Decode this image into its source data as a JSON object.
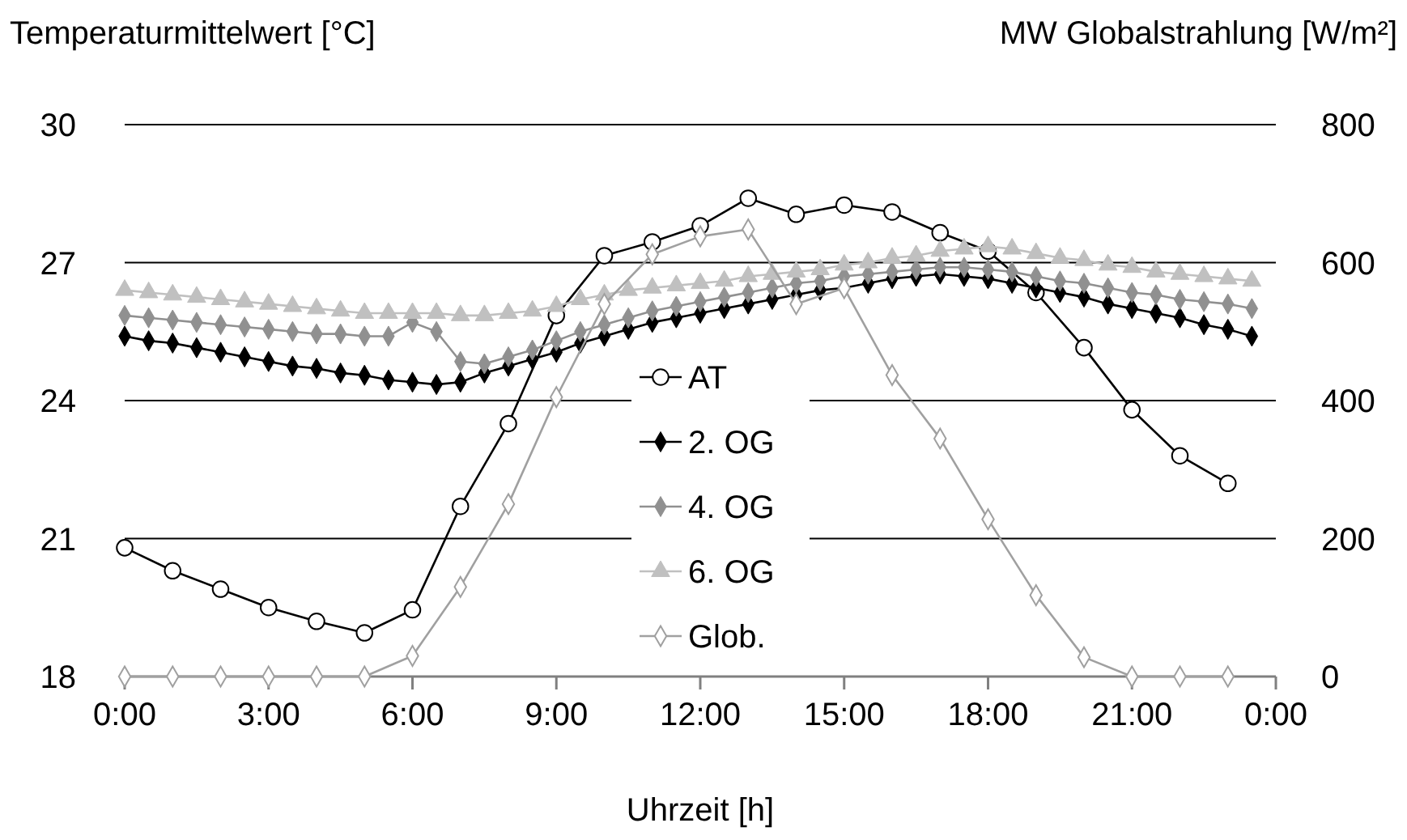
{
  "chart_data": {
    "type": "line",
    "ylabel": "Temperaturmittelwert [°C]",
    "y2label": "MW Globalstrahlung [W/m²]",
    "xlabel": "Uhrzeit [h]",
    "xlim": [
      0,
      24
    ],
    "xticks": [
      {
        "value": 0,
        "label": "0:00"
      },
      {
        "value": 3,
        "label": "3:00"
      },
      {
        "value": 6,
        "label": "6:00"
      },
      {
        "value": 9,
        "label": "9:00"
      },
      {
        "value": 12,
        "label": "12:00"
      },
      {
        "value": 15,
        "label": "15:00"
      },
      {
        "value": 18,
        "label": "18:00"
      },
      {
        "value": 21,
        "label": "21:00"
      },
      {
        "value": 24,
        "label": "0:00"
      }
    ],
    "ylim": [
      18,
      30
    ],
    "yticks": [
      18,
      21,
      24,
      27,
      30
    ],
    "y2lim": [
      0,
      800
    ],
    "y2ticks": [
      0,
      200,
      400,
      600,
      800
    ],
    "grid": "y",
    "legend": "center",
    "series": [
      {
        "name": "AT",
        "color": "#000000",
        "marker": "circle",
        "x": [
          0,
          1,
          2,
          3,
          4,
          5,
          6,
          7,
          8,
          9,
          10,
          11,
          12,
          13,
          14,
          15,
          16,
          17,
          18,
          19,
          20,
          21,
          22,
          23
        ],
        "values": [
          20.8,
          20.3,
          19.9,
          19.5,
          19.2,
          18.95,
          19.45,
          21.7,
          23.5,
          25.85,
          27.15,
          27.45,
          27.8,
          28.4,
          28.05,
          28.25,
          28.1,
          27.65,
          27.25,
          26.35,
          25.15,
          23.8,
          22.8,
          22.2
        ]
      },
      {
        "name": "2. OG",
        "color": "#000000",
        "marker": "diamond",
        "x": [
          0,
          0.5,
          1,
          1.5,
          2,
          2.5,
          3,
          3.5,
          4,
          4.5,
          5,
          5.5,
          6,
          6.5,
          7,
          7.5,
          8,
          8.5,
          9,
          9.5,
          10,
          10.5,
          11,
          11.5,
          12,
          12.5,
          13,
          13.5,
          14,
          14.5,
          15,
          15.5,
          16,
          16.5,
          17,
          17.5,
          18,
          18.5,
          19,
          19.5,
          20,
          20.5,
          21,
          21.5,
          22,
          22.5,
          23,
          23.5
        ],
        "values": [
          25.4,
          25.3,
          25.25,
          25.15,
          25.05,
          24.95,
          24.85,
          24.75,
          24.7,
          24.6,
          24.55,
          24.45,
          24.4,
          24.35,
          24.4,
          24.6,
          24.75,
          24.9,
          25.05,
          25.25,
          25.4,
          25.55,
          25.7,
          25.8,
          25.9,
          26.0,
          26.1,
          26.2,
          26.3,
          26.4,
          26.45,
          26.55,
          26.65,
          26.7,
          26.75,
          26.7,
          26.65,
          26.55,
          26.45,
          26.35,
          26.25,
          26.1,
          26.0,
          25.9,
          25.8,
          25.65,
          25.55,
          25.4
        ]
      },
      {
        "name": "4. OG",
        "color": "#909090",
        "marker": "diamond",
        "x": [
          0,
          0.5,
          1,
          1.5,
          2,
          2.5,
          3,
          3.5,
          4,
          4.5,
          5,
          5.5,
          6,
          6.5,
          7,
          7.5,
          8,
          8.5,
          9,
          9.5,
          10,
          10.5,
          11,
          11.5,
          12,
          12.5,
          13,
          13.5,
          14,
          14.5,
          15,
          15.5,
          16,
          16.5,
          17,
          17.5,
          18,
          18.5,
          19,
          19.5,
          20,
          20.5,
          21,
          21.5,
          22,
          22.5,
          23,
          23.5
        ],
        "values": [
          25.85,
          25.8,
          25.75,
          25.7,
          25.65,
          25.6,
          25.55,
          25.5,
          25.45,
          25.45,
          25.4,
          25.4,
          25.7,
          25.5,
          24.85,
          24.8,
          24.95,
          25.1,
          25.3,
          25.5,
          25.65,
          25.8,
          25.95,
          26.05,
          26.15,
          26.25,
          26.35,
          26.45,
          26.55,
          26.6,
          26.7,
          26.75,
          26.8,
          26.85,
          26.9,
          26.9,
          26.85,
          26.8,
          26.7,
          26.6,
          26.55,
          26.45,
          26.35,
          26.3,
          26.2,
          26.15,
          26.1,
          26.0
        ]
      },
      {
        "name": "6. OG",
        "color": "#c0c0c0",
        "marker": "triangle",
        "x": [
          0,
          0.5,
          1,
          1.5,
          2,
          2.5,
          3,
          3.5,
          4,
          4.5,
          5,
          5.5,
          6,
          6.5,
          7,
          7.5,
          8,
          8.5,
          9,
          9.5,
          10,
          10.5,
          11,
          11.5,
          12,
          12.5,
          13,
          13.5,
          14,
          14.5,
          15,
          15.5,
          16,
          16.5,
          17,
          17.5,
          18,
          18.5,
          19,
          19.5,
          20,
          20.5,
          21,
          21.5,
          22,
          22.5,
          23,
          23.5
        ],
        "values": [
          26.4,
          26.35,
          26.3,
          26.25,
          26.2,
          26.15,
          26.1,
          26.05,
          26.0,
          25.95,
          25.9,
          25.9,
          25.9,
          25.9,
          25.85,
          25.85,
          25.9,
          25.95,
          26.05,
          26.2,
          26.3,
          26.4,
          26.45,
          26.5,
          26.55,
          26.6,
          26.7,
          26.75,
          26.8,
          26.85,
          26.95,
          27.0,
          27.1,
          27.15,
          27.25,
          27.3,
          27.35,
          27.3,
          27.2,
          27.1,
          27.05,
          26.95,
          26.9,
          26.8,
          26.75,
          26.7,
          26.65,
          26.6
        ]
      },
      {
        "name": "Glob.",
        "color": "#a0a0a0",
        "marker": "diamond",
        "axis": "y2",
        "x": [
          0,
          1,
          2,
          3,
          4,
          5,
          6,
          7,
          8,
          9,
          10,
          11,
          12,
          13,
          14,
          15,
          16,
          17,
          18,
          19,
          20,
          21,
          22,
          23
        ],
        "values": [
          0,
          0,
          0,
          0,
          0,
          0,
          30,
          130,
          250,
          405,
          540,
          612,
          638,
          648,
          540,
          563,
          437,
          345,
          228,
          118,
          28,
          0,
          0,
          0
        ]
      }
    ]
  }
}
